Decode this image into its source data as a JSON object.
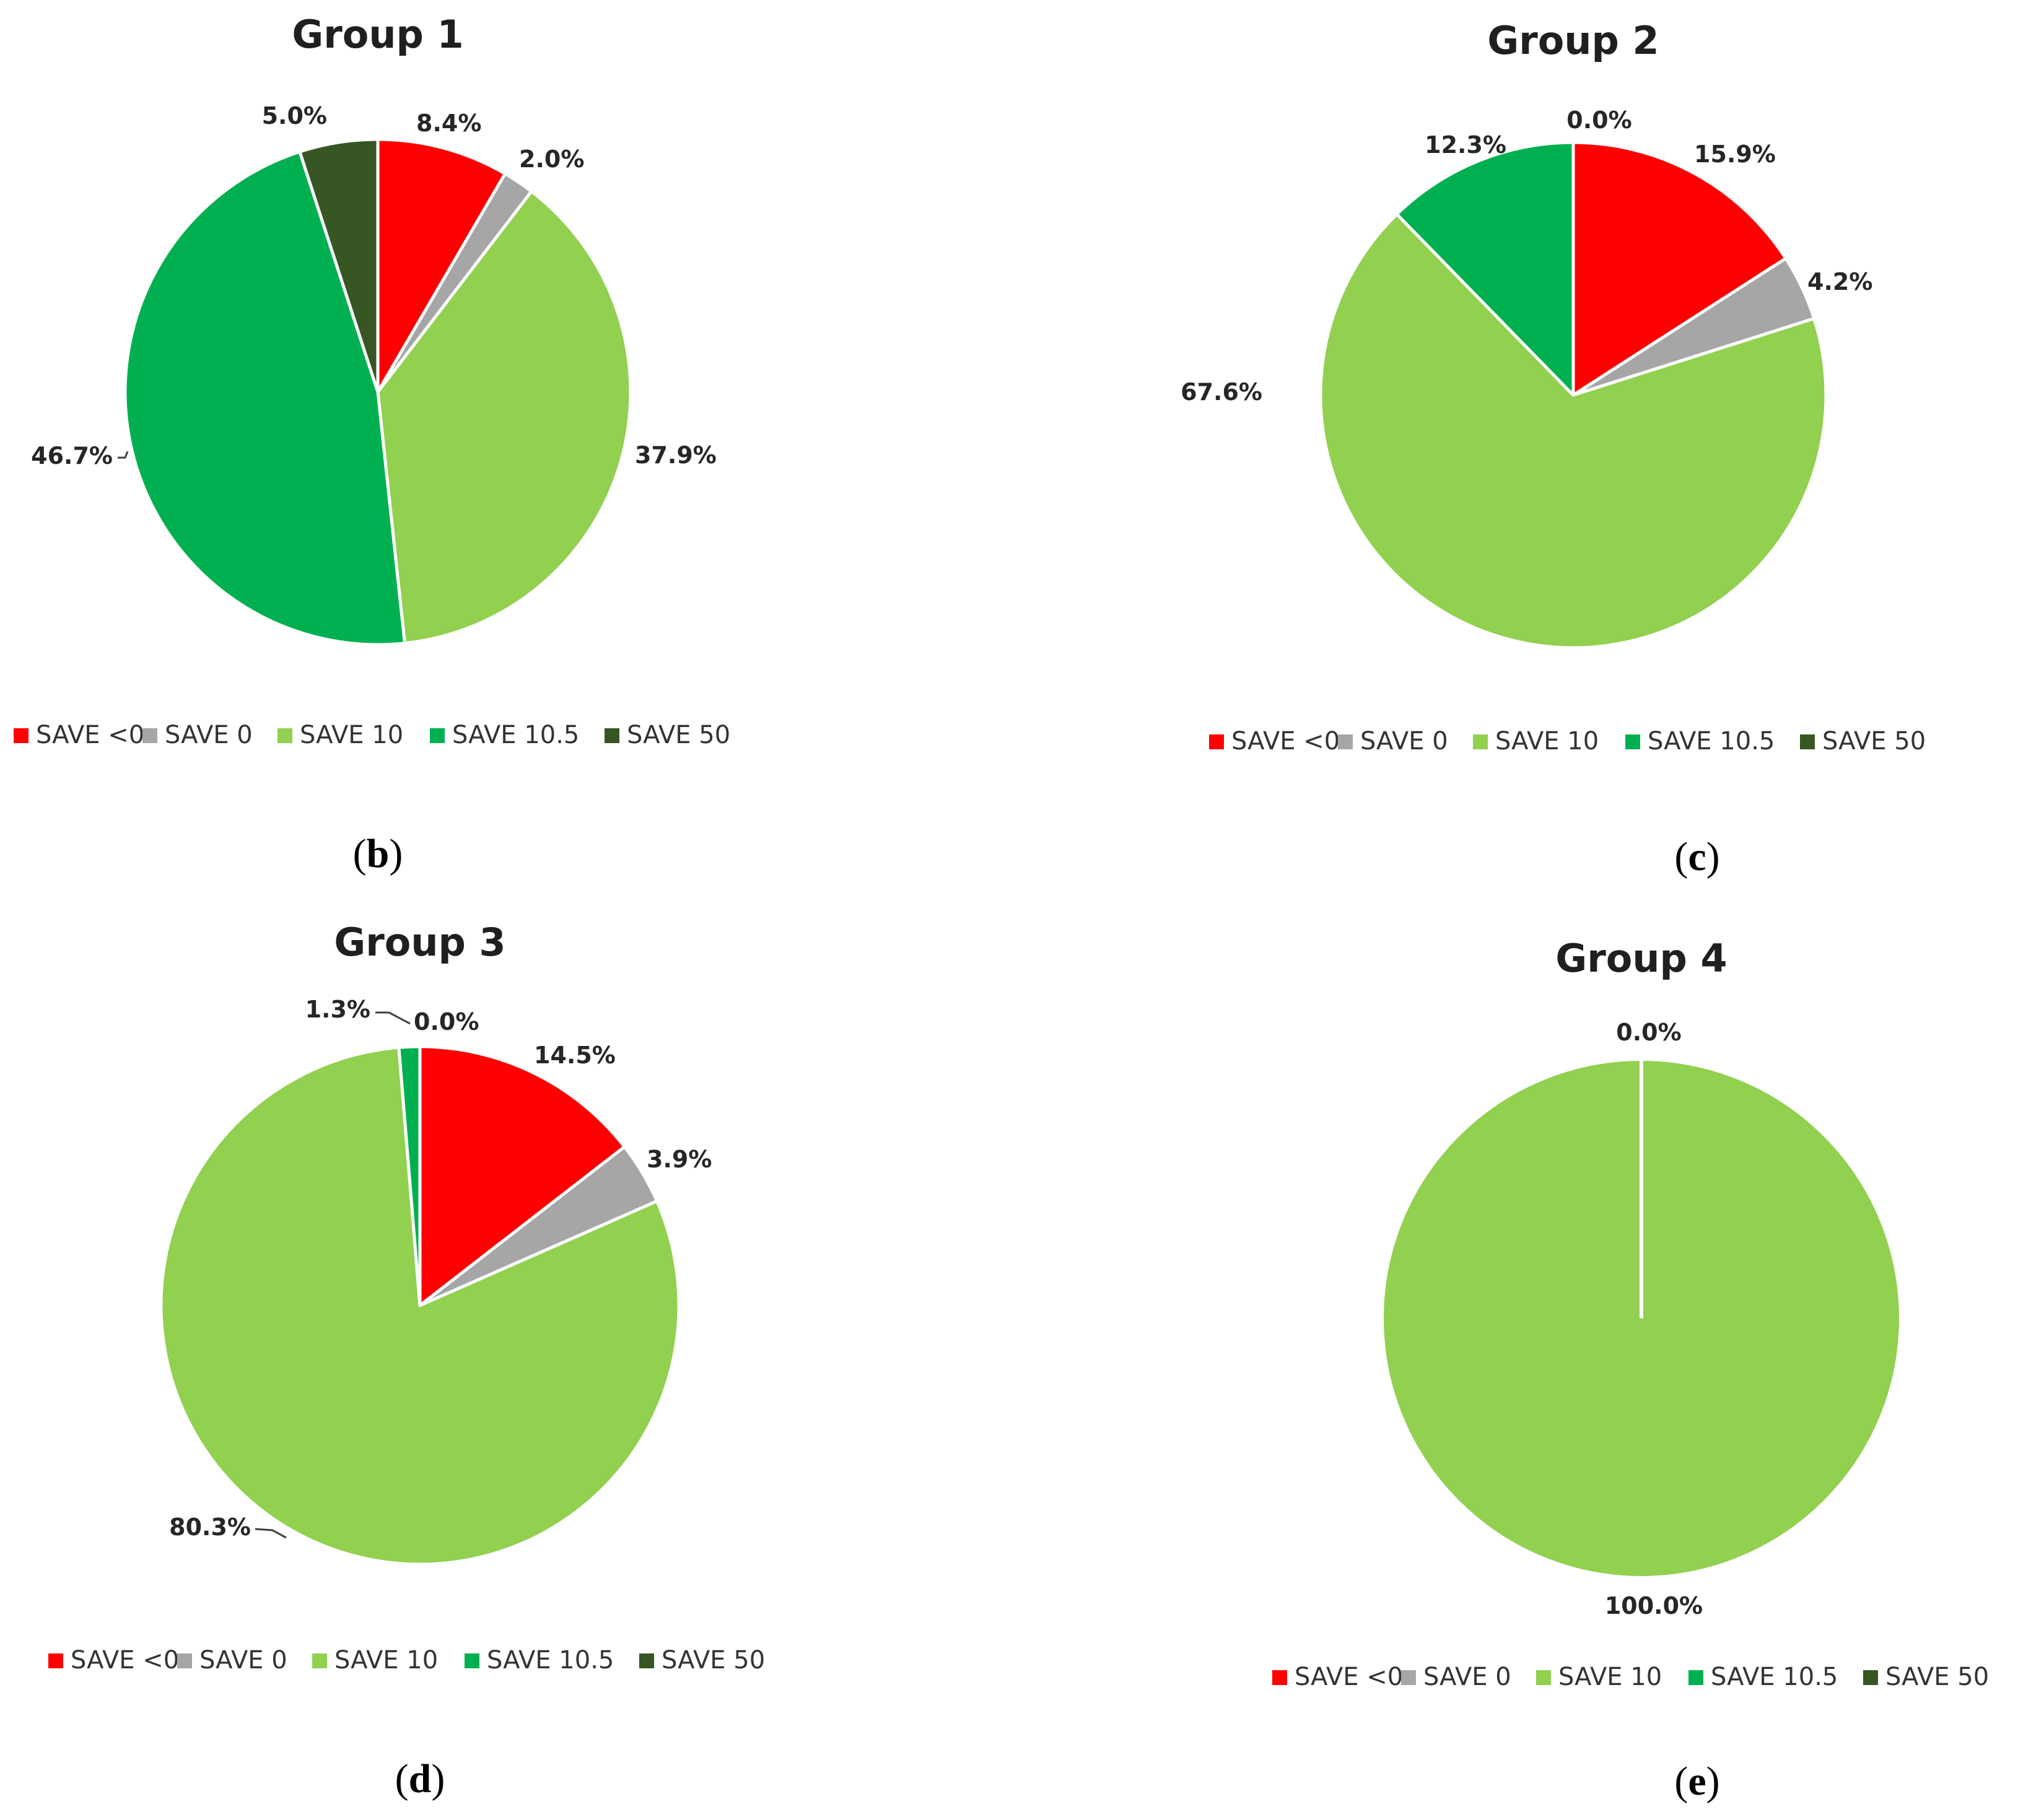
{
  "colors": {
    "SAVE <0": "#ff0000",
    "SAVE 0": "#a6a6a6",
    "SAVE 10": "#92d050",
    "SAVE 10.5": "#00b050",
    "SAVE 50": "#375623"
  },
  "chart_data": [
    {
      "type": "pie",
      "panel": "b",
      "title": "Group 1",
      "legend_position": "bottom",
      "slices": [
        {
          "label": "SAVE <0",
          "value": 8.4,
          "text": "8.4%"
        },
        {
          "label": "SAVE 0",
          "value": 2.0,
          "text": "2.0%"
        },
        {
          "label": "SAVE 10",
          "value": 37.9,
          "text": "37.9%"
        },
        {
          "label": "SAVE 10.5",
          "value": 46.7,
          "text": "46.7%"
        },
        {
          "label": "SAVE 50",
          "value": 5.0,
          "text": "5.0%"
        }
      ]
    },
    {
      "type": "pie",
      "panel": "c",
      "title": "Group 2",
      "legend_position": "bottom",
      "slices": [
        {
          "label": "SAVE <0",
          "value": 15.9,
          "text": "15.9%"
        },
        {
          "label": "SAVE 0",
          "value": 4.2,
          "text": "4.2%"
        },
        {
          "label": "SAVE 10",
          "value": 67.6,
          "text": "67.6%"
        },
        {
          "label": "SAVE 10.5",
          "value": 12.3,
          "text": "12.3%"
        },
        {
          "label": "SAVE 50",
          "value": 0.0,
          "text": "0.0%"
        }
      ]
    },
    {
      "type": "pie",
      "panel": "d",
      "title": "Group 3",
      "legend_position": "bottom",
      "slices": [
        {
          "label": "SAVE <0",
          "value": 14.5,
          "text": "14.5%"
        },
        {
          "label": "SAVE 0",
          "value": 3.9,
          "text": "3.9%"
        },
        {
          "label": "SAVE 10",
          "value": 80.3,
          "text": "80.3%"
        },
        {
          "label": "SAVE 10.5",
          "value": 1.3,
          "text": "1.3%"
        },
        {
          "label": "SAVE 50",
          "value": 0.0,
          "text": "0.0%"
        }
      ]
    },
    {
      "type": "pie",
      "panel": "e",
      "title": "Group 4",
      "legend_position": "bottom",
      "slices": [
        {
          "label": "SAVE <0",
          "value": 0.0,
          "text": "0.0%"
        },
        {
          "label": "SAVE 0",
          "value": 0.0,
          "text": "0.0%"
        },
        {
          "label": "SAVE 10",
          "value": 100.0,
          "text": "100.0%"
        },
        {
          "label": "SAVE 10.5",
          "value": 0.0,
          "text": "0.0%"
        },
        {
          "label": "SAVE 50",
          "value": 0.0,
          "text": "0.0%"
        }
      ]
    }
  ],
  "legend": [
    "SAVE <0",
    "SAVE 0",
    "SAVE 10",
    "SAVE 10.5",
    "SAVE 50"
  ],
  "panel_letters": [
    {
      "open": "(",
      "letter": "b",
      "close": ")"
    },
    {
      "open": "(",
      "letter": "c",
      "close": ")"
    },
    {
      "open": "(",
      "letter": "d",
      "close": ")"
    },
    {
      "open": "(",
      "letter": "e",
      "close": ")"
    }
  ]
}
